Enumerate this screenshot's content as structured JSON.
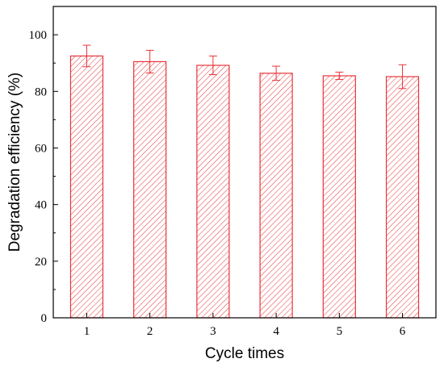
{
  "chart_data": {
    "type": "bar",
    "title": "",
    "xlabel": "Cycle times",
    "ylabel": "Degradation efficiency (%)",
    "categories": [
      "1",
      "2",
      "3",
      "4",
      "5",
      "6"
    ],
    "values": [
      92.5,
      90.5,
      89.2,
      86.4,
      85.5,
      85.2
    ],
    "error": [
      3.8,
      4.0,
      3.3,
      2.5,
      1.3,
      4.2
    ],
    "ylim": [
      0,
      110
    ],
    "yticks": [
      0,
      20,
      40,
      60,
      80,
      100
    ],
    "grid": false,
    "legend": "none",
    "bar_color": "#e8343a",
    "bar_fill": "diagonal-hatch"
  }
}
